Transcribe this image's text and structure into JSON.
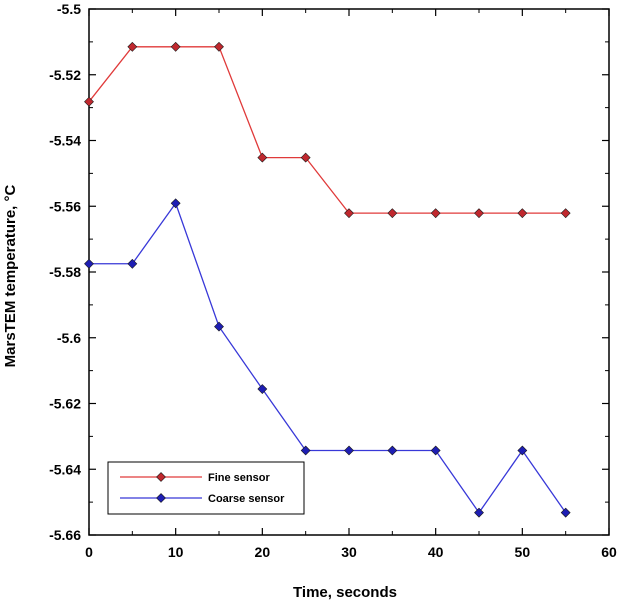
{
  "chart_data": {
    "type": "line",
    "title": "",
    "xlabel": "Time, seconds",
    "ylabel": "MarsTEM temperature, °C",
    "xlim": [
      0,
      60
    ],
    "ylim": [
      -5.66,
      -5.5
    ],
    "x_ticks": [
      0,
      10,
      20,
      30,
      40,
      50,
      60
    ],
    "x_tick_labels": [
      "0",
      "10",
      "20",
      "30",
      "40",
      "50",
      "60"
    ],
    "y_ticks": [
      -5.5,
      -5.52,
      -5.54,
      -5.56,
      -5.58,
      -5.6,
      -5.62,
      -5.64,
      -5.66
    ],
    "y_tick_labels": [
      "-5.5",
      "-5.52",
      "-5.54",
      "-5.56",
      "-5.58",
      "-5.6",
      "-5.62",
      "-5.64",
      "-5.66"
    ],
    "grid": false,
    "legend_position": "bottom-left",
    "x": [
      0,
      5,
      10,
      15,
      20,
      25,
      30,
      35,
      40,
      45,
      50,
      55
    ],
    "series": [
      {
        "name": "Fine sensor",
        "color": "#e03a3a",
        "marker_color": "#c0282e",
        "marker": "diamond",
        "values": [
          -5.5282,
          -5.5115,
          -5.5115,
          -5.5115,
          -5.5452,
          -5.5452,
          -5.5621,
          -5.5621,
          -5.5621,
          -5.5621,
          -5.5621,
          -5.5621
        ]
      },
      {
        "name": "Coarse sensor",
        "color": "#3838d8",
        "marker_color": "#1e1eb4",
        "marker": "diamond",
        "values": [
          -5.5775,
          -5.5775,
          -5.5591,
          -5.5966,
          -5.6156,
          -5.6343,
          -5.6343,
          -5.6343,
          -5.6343,
          -5.6532,
          -5.6343,
          -5.6532
        ]
      }
    ]
  }
}
